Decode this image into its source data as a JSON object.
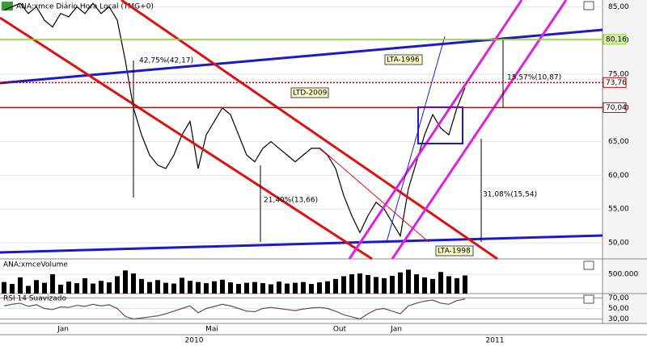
{
  "chart_data": [
    {
      "type": "line",
      "title": "ANA:xmce Diário Hora Local (TMG+0)",
      "color": "#000000",
      "values": [
        84.5,
        85,
        85.5,
        84,
        85,
        83,
        82,
        84,
        83.5,
        85,
        84,
        85.5,
        84,
        85,
        83,
        77,
        70,
        66,
        63,
        61.5,
        61,
        63,
        66,
        68,
        61,
        66,
        68,
        70,
        69,
        66,
        63,
        62,
        64,
        65,
        64,
        63,
        62,
        63,
        64,
        64,
        63,
        61,
        57,
        54,
        51.5,
        54,
        56,
        55,
        53,
        51,
        58,
        62,
        66,
        69,
        67,
        66,
        70,
        73
      ],
      "ylim": [
        47.6,
        86
      ],
      "grid": true,
      "yticks": [
        {
          "value": 50,
          "label": "50,00"
        },
        {
          "value": 55,
          "label": "55,00"
        },
        {
          "value": 60,
          "label": "60,00"
        },
        {
          "value": 65,
          "label": "65,00"
        },
        {
          "value": 70,
          "label": "70,00"
        },
        {
          "value": 75,
          "label": "75,00"
        },
        {
          "value": 80,
          "label": "80,00"
        },
        {
          "value": 85,
          "label": "85,00"
        }
      ],
      "levels": [
        {
          "value": 80.16,
          "label": "80,16",
          "color": "#9acd32"
        },
        {
          "value": 73.76,
          "label": "73,76",
          "color": "#cc0000"
        },
        {
          "value": 70.04,
          "label": "70,04",
          "color": "#cc0000"
        }
      ],
      "annotations": [
        "42,75%(42,17)",
        "15,57%(10,87)",
        "21,40%(13,66)",
        "31,08%(15,54)",
        "LTA-1996",
        "LTD-2009",
        "LTA-1998"
      ]
    },
    {
      "type": "bar",
      "title": "ANA:xmceVolume",
      "color": "#000000",
      "values": [
        300000,
        250000,
        420000,
        200000,
        350000,
        280000,
        500000,
        230000,
        310000,
        270000,
        400000,
        260000,
        330000,
        290000,
        450000,
        600000,
        520000,
        380000,
        300000,
        350000,
        280000,
        260000,
        410000,
        330000,
        300000,
        270000,
        320000,
        360000,
        290000,
        250000,
        280000,
        300000,
        270000,
        240000,
        310000,
        260000,
        280000,
        300000,
        250000,
        290000,
        320000,
        380000,
        450000,
        500000,
        520000,
        480000,
        430000,
        400000,
        460000,
        550000,
        620000,
        500000,
        420000,
        380000,
        560000,
        450000,
        400000,
        470000
      ],
      "ylim": [
        0,
        900000
      ],
      "yticks": [
        {
          "value": 500000,
          "label": "500.000"
        }
      ]
    },
    {
      "type": "line",
      "title": "RSI 14 Suavizado",
      "color": "#555555",
      "values": [
        55,
        58,
        60,
        54,
        57,
        50,
        48,
        53,
        52,
        56,
        54,
        58,
        55,
        57,
        50,
        35,
        30,
        32,
        34,
        36,
        40,
        45,
        50,
        55,
        42,
        50,
        54,
        58,
        55,
        50,
        45,
        44,
        50,
        52,
        50,
        48,
        46,
        49,
        51,
        52,
        50,
        45,
        38,
        34,
        30,
        40,
        48,
        50,
        45,
        40,
        55,
        60,
        64,
        66,
        60,
        58,
        65,
        68
      ],
      "ylim": [
        21.7,
        78.3
      ],
      "yticks": [
        {
          "value": 30,
          "label": "30,00"
        },
        {
          "value": 50,
          "label": "50,00"
        },
        {
          "value": 70,
          "label": "70,00"
        }
      ],
      "x_labels": [
        "Jan",
        "Mai",
        "Out",
        "Jan"
      ],
      "years": [
        "2010",
        "2011"
      ]
    }
  ]
}
